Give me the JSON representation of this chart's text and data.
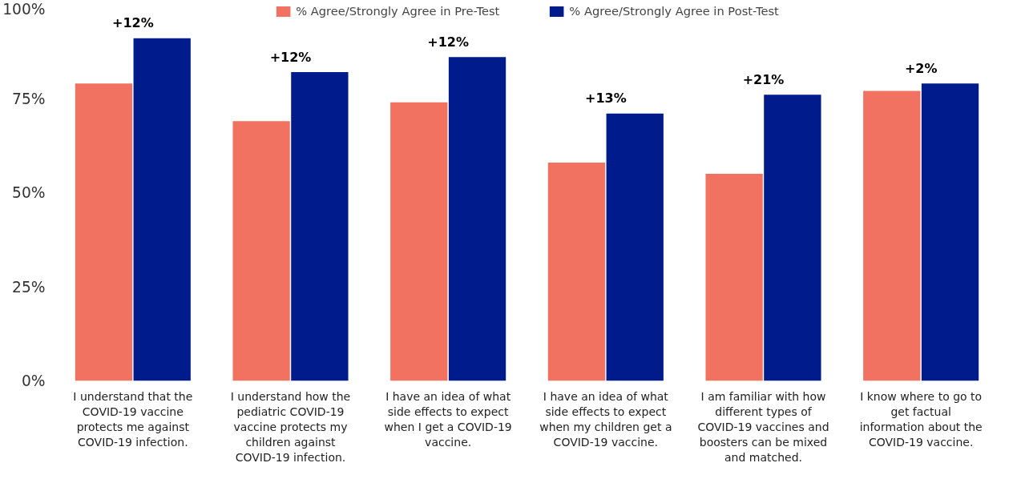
{
  "chart_data": {
    "type": "bar",
    "categories": [
      "I understand that the COVID-19 vaccine protects me against COVID-19 infection.",
      "I understand how the pediatric COVID-19 vaccine protects my children against COVID-19 infection.",
      "I have an idea of what side effects to expect when I get a COVID-19 vaccine.",
      "I have an idea of what side effects to expect when my children get a COVID-19 vaccine.",
      "I am familiar with how different types of COVID-19 vaccines and boosters can be mixed and matched.",
      "I know where to go to get factual information about the COVID-19 vaccine."
    ],
    "series": [
      {
        "name": "% Agree/Strongly Agree in Pre-Test",
        "color": "#f27261",
        "values": [
          79,
          69,
          74,
          58,
          55,
          77
        ]
      },
      {
        "name": "% Agree/Strongly Agree in Post-Test",
        "color": "#001c8c",
        "values": [
          91,
          82,
          86,
          71,
          76,
          79
        ]
      }
    ],
    "ylim": [
      0,
      100
    ],
    "yticks": [
      {
        "value": 0,
        "label": "0%"
      },
      {
        "value": 25,
        "label": "25%"
      },
      {
        "value": 50,
        "label": "50%"
      },
      {
        "value": 75,
        "label": "75%"
      },
      {
        "value": 100,
        "label": "100%"
      }
    ],
    "annotations": [
      "+12%",
      "+12%",
      "+12%",
      "+13%",
      "+21%",
      "+2%"
    ],
    "grid": false,
    "legend": "top"
  }
}
